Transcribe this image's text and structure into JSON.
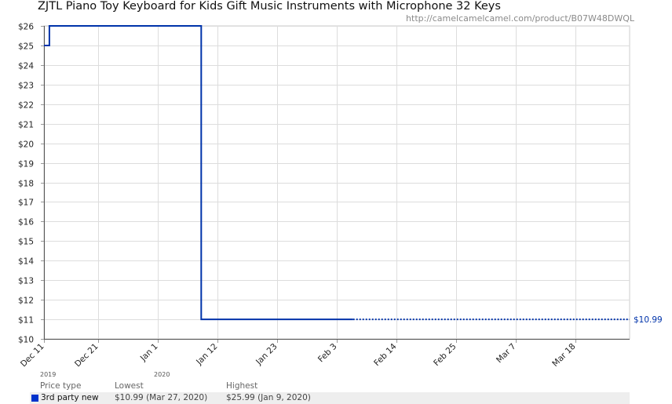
{
  "title": "ZJTL Piano Toy Keyboard for Kids Gift Music Instruments with Microphone 32 Keys",
  "url": "http://camelcamelcamel.com/product/B07W48DWQL",
  "colors": {
    "series": "#0033aa",
    "grid": "#dddddd",
    "label": "#0033aa"
  },
  "chart_data": {
    "type": "line",
    "ylim": [
      10,
      26
    ],
    "yticks": [
      10,
      11,
      12,
      13,
      14,
      15,
      16,
      17,
      18,
      19,
      20,
      21,
      22,
      23,
      24,
      25,
      26
    ],
    "ytick_labels": [
      "$10",
      "$11",
      "$12",
      "$13",
      "$14",
      "$15",
      "$16",
      "$17",
      "$18",
      "$19",
      "$20",
      "$21",
      "$22",
      "$23",
      "$24",
      "$25",
      "$26"
    ],
    "xlim": [
      "2019-12-11",
      "2020-03-28"
    ],
    "xticks": [
      "2019-12-11",
      "2019-12-21",
      "2020-01-01",
      "2020-01-12",
      "2020-01-23",
      "2020-02-03",
      "2020-02-14",
      "2020-02-25",
      "2020-03-07",
      "2020-03-18"
    ],
    "xtick_labels": [
      "Dec 11",
      "Dec 21",
      "Jan 1",
      "Jan 12",
      "Jan 23",
      "Feb 3",
      "Feb 14",
      "Feb 25",
      "Mar 7",
      "Mar 18"
    ],
    "year_labels": [
      {
        "label": "2019",
        "date": "2019-12-11"
      },
      {
        "label": "2020",
        "date": "2020-01-01"
      }
    ],
    "series": [
      {
        "name": "3rd party new",
        "step": true,
        "points": [
          [
            "2019-12-11",
            25
          ],
          [
            "2019-12-12",
            26
          ],
          [
            "2020-01-09",
            11
          ],
          [
            "2020-02-06",
            11
          ]
        ],
        "projected": [
          [
            "2020-02-06",
            11
          ],
          [
            "2020-03-28",
            11
          ]
        ],
        "end_label": "$10.99"
      }
    ],
    "grid": true
  },
  "legend": {
    "headers": {
      "type": "Price type",
      "lowest": "Lowest",
      "highest": "Highest"
    },
    "rows": [
      {
        "name": "3rd party new",
        "lowest": "$10.99 (Mar 27, 2020)",
        "highest": "$25.99 (Jan 9, 2020)"
      }
    ]
  }
}
